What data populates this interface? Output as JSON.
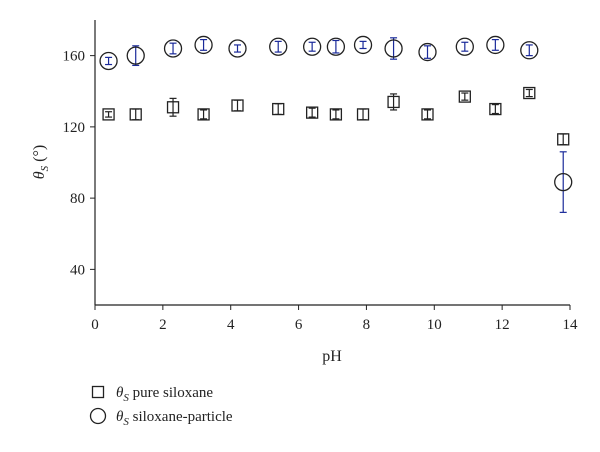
{
  "chart_data": {
    "type": "scatter",
    "xlabel": "pH",
    "ylabel_symbol": "θ",
    "ylabel_sub": "S",
    "ylabel_unit": " (°)",
    "xlim": [
      0,
      14
    ],
    "ylim": [
      20,
      180
    ],
    "xticks": [
      0,
      2,
      4,
      6,
      8,
      10,
      12,
      14
    ],
    "yticks": [
      40,
      80,
      120,
      160
    ],
    "grid": false,
    "legend_position": "bottom-left",
    "colors": {
      "axis": "#222222",
      "marker": "#222222",
      "error_bar_pure": "#222222",
      "error_bar_particle": "#1a2a9a"
    },
    "series": [
      {
        "name_symbol": "θ",
        "name_sub": "S",
        "name_text": " pure siloxane",
        "marker": "square",
        "points": [
          {
            "x": 0.4,
            "y": 127,
            "err": 1.5
          },
          {
            "x": 1.2,
            "y": 127,
            "err": 3
          },
          {
            "x": 2.3,
            "y": 131,
            "err": 5
          },
          {
            "x": 3.2,
            "y": 127,
            "err": 2.5
          },
          {
            "x": 4.2,
            "y": 132,
            "err": 3
          },
          {
            "x": 5.4,
            "y": 130,
            "err": 3
          },
          {
            "x": 6.4,
            "y": 128,
            "err": 2.5
          },
          {
            "x": 7.1,
            "y": 127,
            "err": 2.5
          },
          {
            "x": 7.9,
            "y": 127,
            "err": 3
          },
          {
            "x": 8.8,
            "y": 134,
            "err": 4.5
          },
          {
            "x": 9.8,
            "y": 127,
            "err": 2.5
          },
          {
            "x": 10.9,
            "y": 137,
            "err": 2
          },
          {
            "x": 11.8,
            "y": 130,
            "err": 2.5
          },
          {
            "x": 12.8,
            "y": 139,
            "err": 2
          },
          {
            "x": 13.8,
            "y": 113,
            "err": 3
          }
        ]
      },
      {
        "name_symbol": "θ",
        "name_sub": "S",
        "name_text": " siloxane-particle",
        "marker": "circle",
        "points": [
          {
            "x": 0.4,
            "y": 157,
            "err": 2
          },
          {
            "x": 1.2,
            "y": 160,
            "err": 5.5
          },
          {
            "x": 2.3,
            "y": 164,
            "err": 3
          },
          {
            "x": 3.2,
            "y": 166,
            "err": 3
          },
          {
            "x": 4.2,
            "y": 164,
            "err": 2
          },
          {
            "x": 5.4,
            "y": 165,
            "err": 3
          },
          {
            "x": 6.4,
            "y": 165,
            "err": 2.5
          },
          {
            "x": 7.1,
            "y": 165,
            "err": 3.5
          },
          {
            "x": 7.9,
            "y": 166,
            "err": 2
          },
          {
            "x": 8.8,
            "y": 164,
            "err": 6
          },
          {
            "x": 9.8,
            "y": 162,
            "err": 3.5
          },
          {
            "x": 10.9,
            "y": 165,
            "err": 2.5
          },
          {
            "x": 11.8,
            "y": 166,
            "err": 3
          },
          {
            "x": 12.8,
            "y": 163,
            "err": 3
          },
          {
            "x": 13.8,
            "y": 89,
            "err": 17
          }
        ]
      }
    ]
  }
}
